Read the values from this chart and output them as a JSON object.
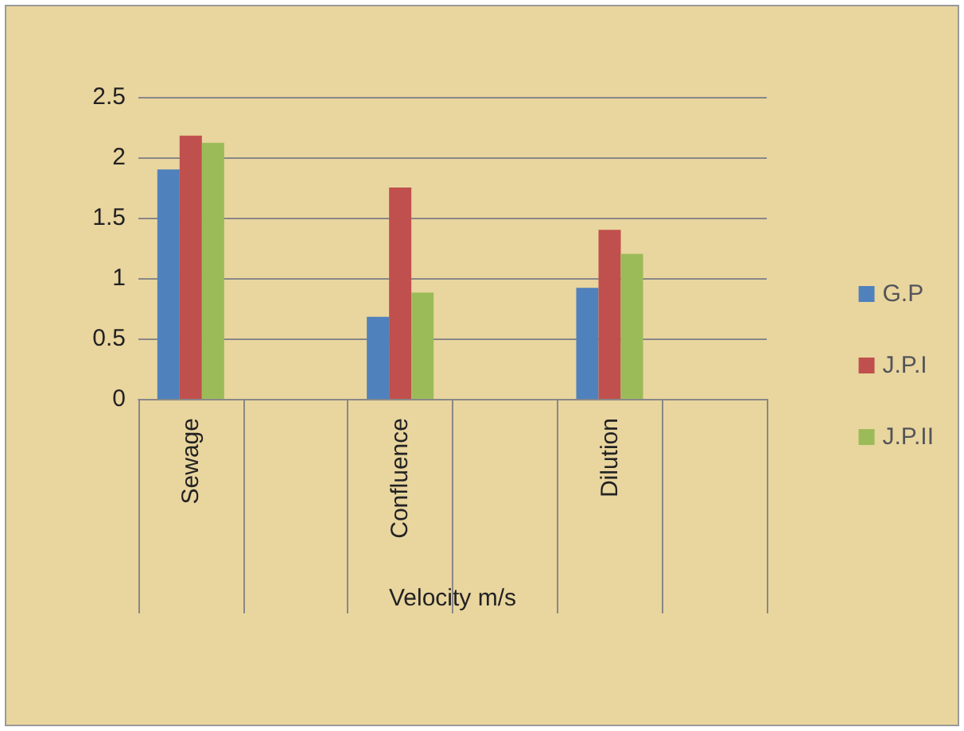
{
  "chart_data": {
    "type": "bar",
    "xlabel": "Velocity m/s",
    "categories": [
      "Sewage",
      null,
      "Confluence",
      null,
      "Dilution",
      null
    ],
    "series": [
      {
        "name": "G.P",
        "color": "#4f81bd",
        "values": [
          1.9,
          null,
          0.68,
          null,
          0.92,
          null
        ]
      },
      {
        "name": "J.P.I",
        "color": "#c0504d",
        "values": [
          2.18,
          null,
          1.75,
          null,
          1.4,
          null
        ]
      },
      {
        "name": "J.P.II",
        "color": "#9bbb59",
        "values": [
          2.12,
          null,
          0.88,
          null,
          1.2,
          null
        ]
      }
    ],
    "ylim": [
      0,
      2.5
    ],
    "yticks": [
      0,
      0.5,
      1,
      1.5,
      2,
      2.5
    ],
    "grid": "y",
    "legend": "right"
  }
}
